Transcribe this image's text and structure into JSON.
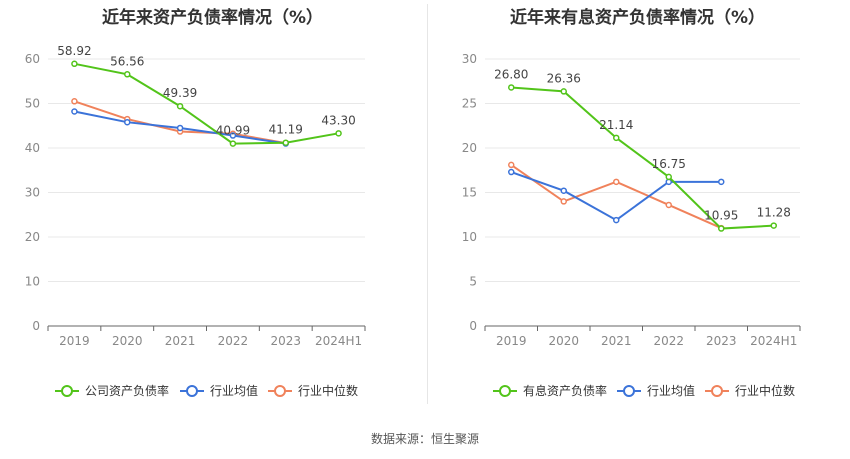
{
  "source": "数据来源：恒生聚源",
  "chart_data": [
    {
      "type": "line",
      "title": "近年来资产负债率情况（%）",
      "categories": [
        "2019",
        "2020",
        "2021",
        "2022",
        "2023",
        "2024H1"
      ],
      "ylim": [
        0,
        60
      ],
      "yticks": [
        0,
        10,
        20,
        30,
        40,
        50,
        60
      ],
      "grid": true,
      "legend_position": "bottom",
      "series": [
        {
          "name": "公司资产负债率",
          "color": "#52c41a",
          "values": [
            58.92,
            56.56,
            49.39,
            40.99,
            41.19,
            43.3
          ],
          "labels": [
            "58.92",
            "56.56",
            "49.39",
            "40.99",
            "41.19",
            "43.30"
          ]
        },
        {
          "name": "行业均值",
          "color": "#3b73d9",
          "values": [
            48.2,
            45.8,
            44.5,
            42.8,
            41.0,
            null
          ]
        },
        {
          "name": "行业中位数",
          "color": "#f0825b",
          "values": [
            50.5,
            46.5,
            43.7,
            43.2,
            41.1,
            null
          ]
        }
      ]
    },
    {
      "type": "line",
      "title": "近年来有息资产负债率情况（%）",
      "categories": [
        "2019",
        "2020",
        "2021",
        "2022",
        "2023",
        "2024H1"
      ],
      "ylim": [
        0,
        30
      ],
      "yticks": [
        0,
        5,
        10,
        15,
        20,
        25,
        30
      ],
      "grid": true,
      "legend_position": "bottom",
      "series": [
        {
          "name": "有息资产负债率",
          "color": "#52c41a",
          "values": [
            26.8,
            26.36,
            21.14,
            16.75,
            10.95,
            11.28
          ],
          "labels": [
            "26.80",
            "26.36",
            "21.14",
            "16.75",
            "10.95",
            "11.28"
          ]
        },
        {
          "name": "行业均值",
          "color": "#3b73d9",
          "values": [
            17.3,
            15.2,
            11.9,
            16.2,
            16.2,
            null
          ]
        },
        {
          "name": "行业中位数",
          "color": "#f0825b",
          "values": [
            18.1,
            14.0,
            16.2,
            13.6,
            11.0,
            null
          ]
        }
      ]
    }
  ]
}
